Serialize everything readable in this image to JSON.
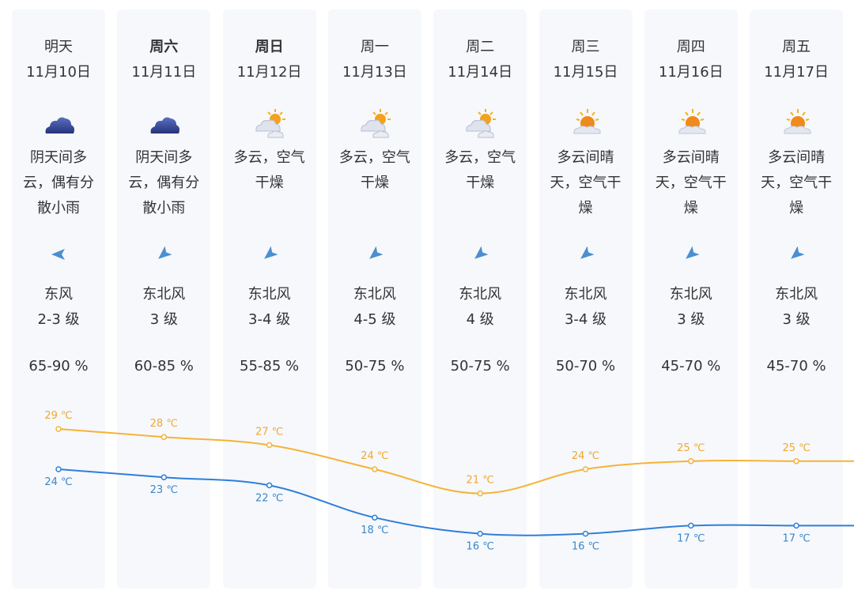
{
  "days": [
    {
      "day": "明天",
      "date": "11月10日",
      "bold": false,
      "icon": "overcast-cloud-icon",
      "desc": [
        "阴天间多",
        "云，偶有分",
        "散小雨"
      ],
      "wind_dir": "东风",
      "wind_level": "2-3 级",
      "wind_angle": 180,
      "humidity": "65-90 %"
    },
    {
      "day": "周六",
      "date": "11月11日",
      "bold": true,
      "icon": "overcast-cloud-icon",
      "desc": [
        "阴天间多",
        "云，偶有分",
        "散小雨"
      ],
      "wind_dir": "东北风",
      "wind_level": "3 级",
      "wind_angle": 140,
      "humidity": "60-85 %"
    },
    {
      "day": "周日",
      "date": "11月12日",
      "bold": true,
      "icon": "partly-cloudy-icon",
      "desc": [
        "多云，空气",
        "干燥"
      ],
      "wind_dir": "东北风",
      "wind_level": "3-4 级",
      "wind_angle": 140,
      "humidity": "55-85 %"
    },
    {
      "day": "周一",
      "date": "11月13日",
      "bold": false,
      "icon": "partly-cloudy-icon",
      "desc": [
        "多云，空气",
        "干燥"
      ],
      "wind_dir": "东北风",
      "wind_level": "4-5 级",
      "wind_angle": 140,
      "humidity": "50-75 %"
    },
    {
      "day": "周二",
      "date": "11月14日",
      "bold": false,
      "icon": "partly-cloudy-icon",
      "desc": [
        "多云，空气",
        "干燥"
      ],
      "wind_dir": "东北风",
      "wind_level": "4 级",
      "wind_angle": 140,
      "humidity": "50-75 %"
    },
    {
      "day": "周三",
      "date": "11月15日",
      "bold": false,
      "icon": "sunny-intervals-icon",
      "desc": [
        "多云间晴",
        "天，空气干",
        "燥"
      ],
      "wind_dir": "东北风",
      "wind_level": "3-4 级",
      "wind_angle": 140,
      "humidity": "50-70 %"
    },
    {
      "day": "周四",
      "date": "11月16日",
      "bold": false,
      "icon": "sunny-intervals-icon",
      "desc": [
        "多云间晴",
        "天，空气干",
        "燥"
      ],
      "wind_dir": "东北风",
      "wind_level": "3 级",
      "wind_angle": 140,
      "humidity": "45-70 %"
    },
    {
      "day": "周五",
      "date": "11月17日",
      "bold": false,
      "icon": "sunny-intervals-icon",
      "desc": [
        "多云间晴",
        "天，空气干",
        "燥"
      ],
      "wind_dir": "东北风",
      "wind_level": "3 级",
      "wind_angle": 140,
      "humidity": "45-70 %"
    }
  ],
  "chart_data": {
    "type": "line",
    "categories": [
      "11月10日",
      "11月11日",
      "11月12日",
      "11月13日",
      "11月14日",
      "11月15日",
      "11月16日",
      "11月17日"
    ],
    "unit": "℃",
    "series": [
      {
        "key": "high",
        "values": [
          29,
          28,
          27,
          24,
          21,
          24,
          25,
          25
        ],
        "color": "#f5b335"
      },
      {
        "key": "low",
        "values": [
          24,
          23,
          22,
          18,
          16,
          16,
          17,
          17
        ],
        "color": "#2f7fd8"
      }
    ],
    "label_colors": {
      "high": "#f0a830",
      "low": "#3a86c8"
    }
  },
  "colors": {
    "card_bg": "#f6f8fc",
    "arrow": "#4b8fd0"
  }
}
